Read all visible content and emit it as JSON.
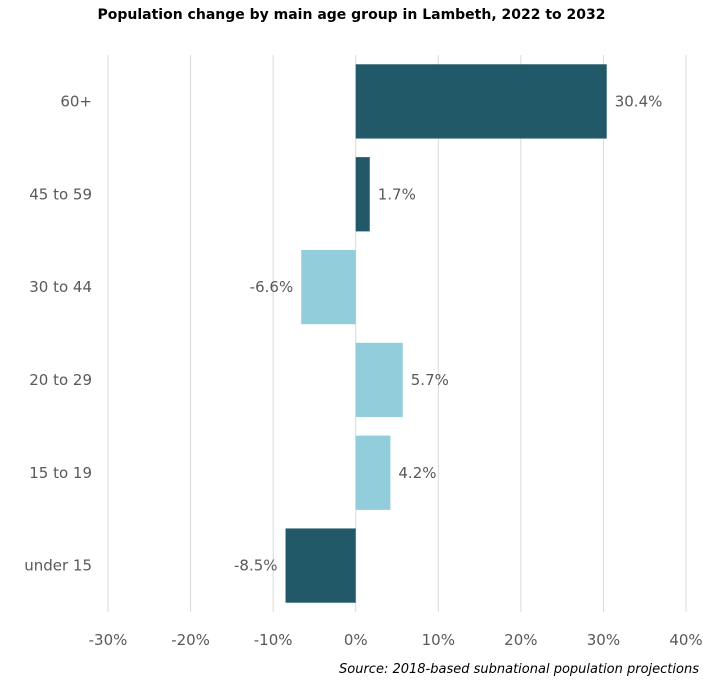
{
  "chart_data": {
    "type": "bar",
    "orientation": "horizontal",
    "title": "Population change by main age group in Lambeth, 2022 to 2032",
    "source": "Source: 2018-based subnational population projections",
    "xlabel": "",
    "ylabel": "",
    "xlim": [
      -30,
      40
    ],
    "x_ticks": [
      -30,
      -20,
      -10,
      0,
      10,
      20,
      30,
      40
    ],
    "x_tick_labels": [
      "-30%",
      "-20%",
      "-10%",
      "0%",
      "10%",
      "20%",
      "30%",
      "40%"
    ],
    "grid": true,
    "legend": "none",
    "categories": [
      "60+",
      "45 to 59",
      "30 to 44",
      "20 to 29",
      "15 to 19",
      "under 15"
    ],
    "values": [
      30.4,
      1.7,
      -6.6,
      5.7,
      4.2,
      -8.5
    ],
    "value_labels": [
      "30.4%",
      "1.7%",
      "-6.6%",
      "5.7%",
      "4.2%",
      "-8.5%"
    ],
    "bar_colors": [
      "#215968",
      "#215968",
      "#92CDDC",
      "#92CDDC",
      "#92CDDC",
      "#215968"
    ]
  }
}
